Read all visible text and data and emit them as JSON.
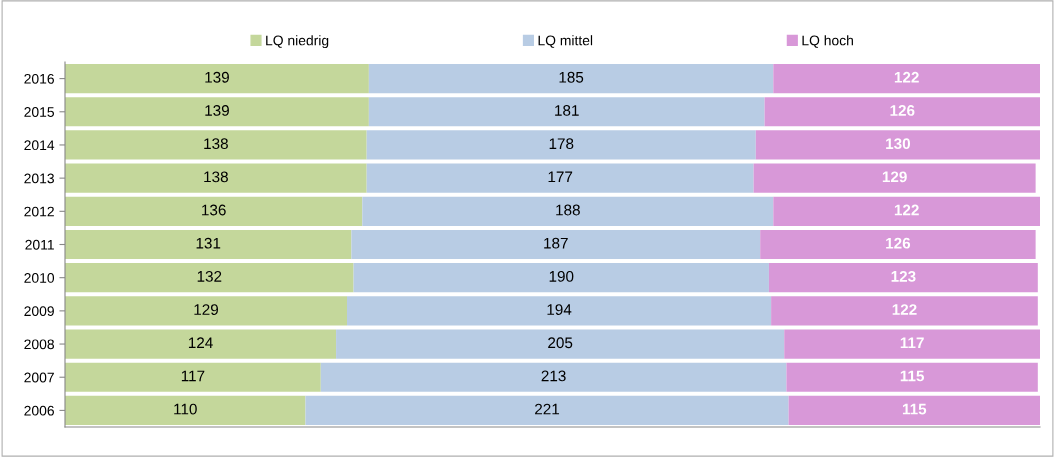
{
  "chart_data": {
    "type": "bar",
    "orientation": "horizontal",
    "stacked": true,
    "data_labels": true,
    "legend": "top",
    "grid": false,
    "categories": [
      "2016",
      "2015",
      "2014",
      "2013",
      "2012",
      "2011",
      "2010",
      "2009",
      "2008",
      "2007",
      "2006"
    ],
    "series": [
      {
        "name": "LQ niedrig",
        "color": "#c4d79b",
        "values": [
          139,
          139,
          138,
          138,
          136,
          131,
          132,
          129,
          124,
          117,
          110
        ]
      },
      {
        "name": "LQ mittel",
        "color": "#b8cce4",
        "values": [
          185,
          181,
          178,
          177,
          188,
          187,
          190,
          194,
          205,
          213,
          221
        ]
      },
      {
        "name": "LQ hoch",
        "color": "#d898d8",
        "values": [
          122,
          126,
          130,
          129,
          122,
          126,
          123,
          122,
          117,
          115,
          115
        ]
      }
    ]
  }
}
